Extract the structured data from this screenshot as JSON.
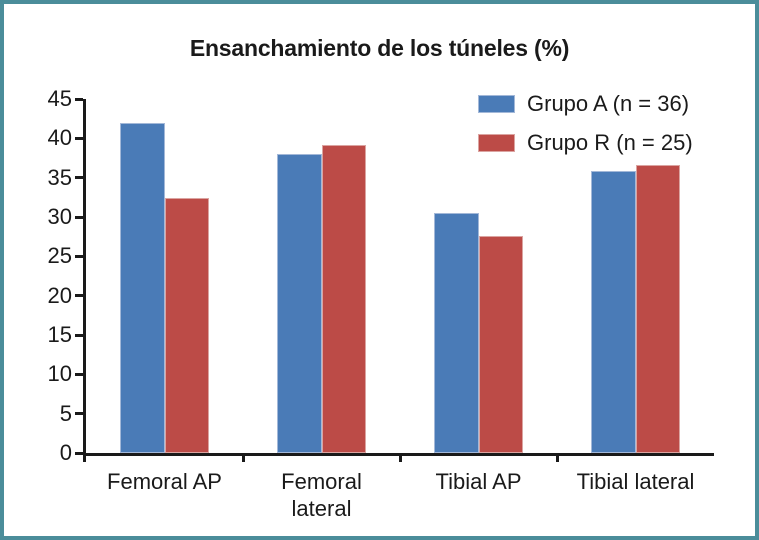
{
  "chart_data": {
    "type": "bar",
    "title": "Ensanchamiento de los túneles (%)",
    "categories": [
      "Femoral AP",
      "Femoral lateral",
      "Tibial AP",
      "Tibial lateral"
    ],
    "category_label_lines": [
      [
        "Femoral AP"
      ],
      [
        "Femoral",
        "lateral"
      ],
      [
        "Tibial AP"
      ],
      [
        "Tibial lateral"
      ]
    ],
    "series": [
      {
        "name": "Grupo A (n = 36)",
        "color": "#4a7bb7",
        "border_color": "#a3b8d8",
        "values": [
          42.0,
          38.0,
          30.5,
          35.8
        ]
      },
      {
        "name": "Grupo R (n = 25)",
        "color": "#bc4b47",
        "border_color": "#dba4a1",
        "values": [
          32.4,
          39.1,
          27.6,
          36.6
        ]
      }
    ],
    "xlabel": "",
    "ylabel": "",
    "ylim": [
      0,
      45
    ],
    "yticks": [
      0,
      5,
      10,
      15,
      20,
      25,
      30,
      35,
      40,
      45
    ],
    "grid": false,
    "legend_position": "top-right-inside",
    "colors": {
      "frame_border": "#4b8d9a",
      "axis": "#1a1a1a",
      "text": "#1a1a1a",
      "background": "#ffffff"
    }
  }
}
